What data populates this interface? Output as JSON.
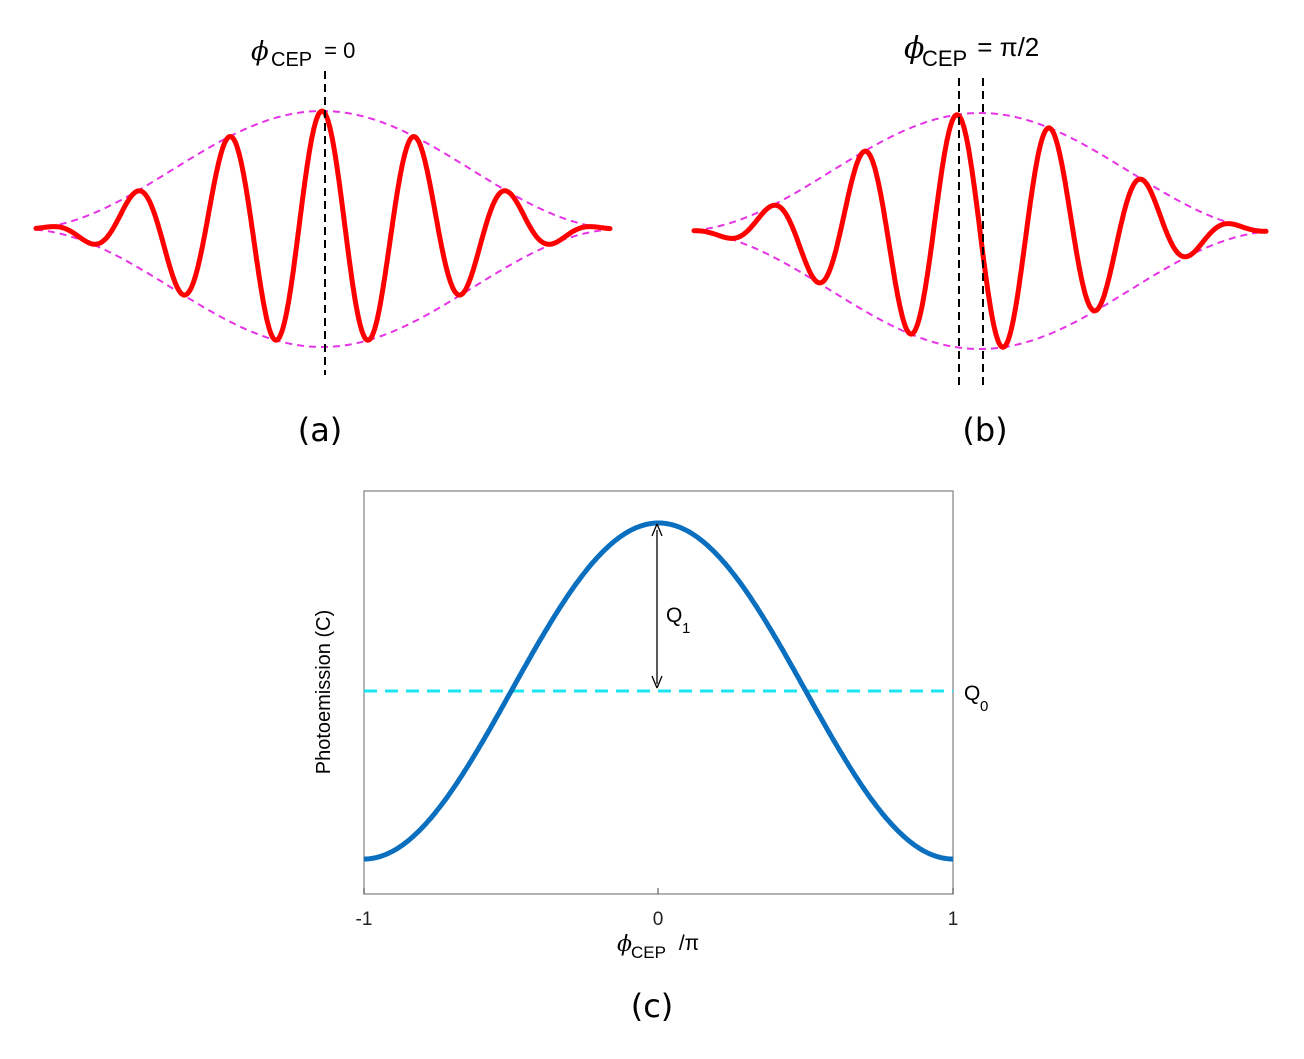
{
  "chart_data": [
    {
      "id": "a",
      "type": "line",
      "panel_label": "(a)",
      "annotation": {
        "symbol": "ϕ",
        "subscript": "CEP",
        "suffix": " = 0"
      },
      "series": [
        {
          "role": "carrier",
          "color": "#ff0000",
          "style": "solid"
        },
        {
          "role": "envelope",
          "color": "#e633e6",
          "style": "dashed"
        }
      ],
      "cep_phase_over_pi": 0,
      "marker_lines": 1
    },
    {
      "id": "b",
      "type": "line",
      "panel_label": "(b)",
      "annotation": {
        "symbol": "ϕ",
        "subscript": "CEP",
        "suffix": " = π/2"
      },
      "series": [
        {
          "role": "carrier",
          "color": "#ff0000",
          "style": "solid"
        },
        {
          "role": "envelope",
          "color": "#e633e6",
          "style": "dashed"
        }
      ],
      "cep_phase_over_pi": 0.5,
      "marker_lines": 2
    },
    {
      "id": "c",
      "type": "line",
      "panel_label": "(c)",
      "xlabel": {
        "symbol": "ϕ",
        "subscript": "CEP",
        "suffix": " /π"
      },
      "ylabel": "Photoemission (C)",
      "xlim": [
        -1,
        1
      ],
      "x_ticks": [
        "-1",
        "0",
        "1"
      ],
      "y_ticks": [],
      "series": [
        {
          "role": "photoemission",
          "color": "#0a6fbf",
          "style": "solid",
          "function": "Q0 + Q1·cos(π·x)"
        },
        {
          "role": "mean",
          "label": "Q0",
          "color": "#19e6ef",
          "style": "dashed"
        }
      ],
      "annotations": [
        {
          "label": "Q",
          "subscript": "1"
        },
        {
          "label": "Q",
          "subscript": "0"
        }
      ]
    }
  ]
}
